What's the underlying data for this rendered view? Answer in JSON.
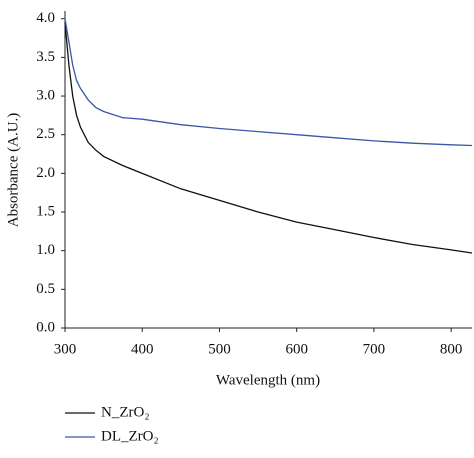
{
  "chart_data": {
    "type": "line",
    "x_label": "Wavelength (nm)",
    "y_label": "Absorbance (A.U.)",
    "x": [
      300,
      305,
      310,
      315,
      320,
      330,
      340,
      350,
      375,
      400,
      450,
      500,
      550,
      600,
      650,
      700,
      750,
      800,
      827
    ],
    "series": [
      {
        "name": "N_ZrO₂",
        "color": "#111111",
        "values": [
          3.95,
          3.4,
          3.0,
          2.75,
          2.6,
          2.4,
          2.3,
          2.22,
          2.1,
          2.0,
          1.8,
          1.65,
          1.5,
          1.37,
          1.27,
          1.17,
          1.08,
          1.01,
          0.97
        ]
      },
      {
        "name": "DL_ZrO₂",
        "color": "#3a57a8",
        "values": [
          4.0,
          3.7,
          3.4,
          3.2,
          3.1,
          2.95,
          2.85,
          2.8,
          2.72,
          2.7,
          2.63,
          2.58,
          2.54,
          2.5,
          2.46,
          2.42,
          2.39,
          2.37,
          2.36
        ]
      }
    ],
    "xlim": [
      300,
      827
    ],
    "xticks": [
      300,
      400,
      500,
      600,
      700,
      800
    ],
    "ylim": [
      0,
      4.1
    ],
    "yticks": [
      {
        "value": 0,
        "label": "0.0"
      },
      0.5,
      {
        "value": 1,
        "label": "1.0"
      },
      1.5,
      {
        "value": 2,
        "label": "2.0"
      },
      2.5,
      {
        "value": 3,
        "label": "3.0"
      },
      3.5,
      {
        "value": 4,
        "label": "4.0"
      }
    ]
  }
}
